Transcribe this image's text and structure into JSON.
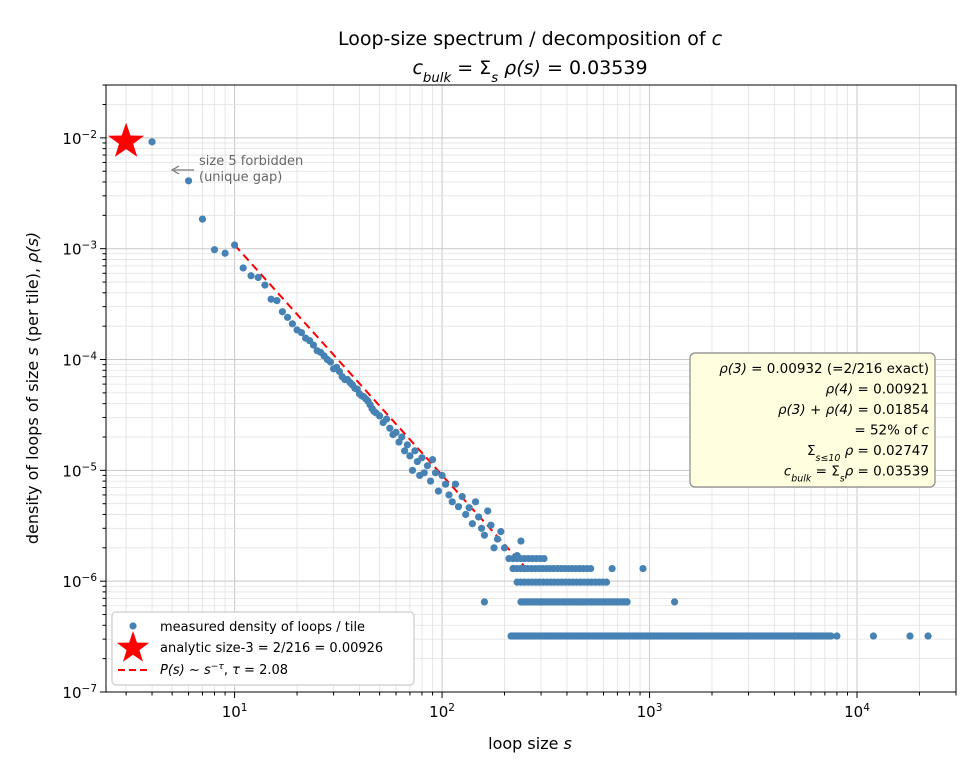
{
  "chart_data": {
    "type": "scatter",
    "title": "Loop-size spectrum / decomposition of c",
    "subtitle": "c_bulk = Σ_s ρ(s) = 0.03539",
    "xlabel": "loop size  s",
    "ylabel": "density of loops of size s  (per tile),  ρ(s)",
    "xscale": "log",
    "yscale": "log",
    "xlim": [
      2.4,
      30000
    ],
    "ylim": [
      1e-07,
      0.03
    ],
    "x_ticks": [
      "10^1",
      "10^2",
      "10^3",
      "10^4"
    ],
    "y_ticks": [
      "10^-7",
      "10^-6",
      "10^-5",
      "10^-4",
      "10^-3",
      "10^-2"
    ],
    "grid": true,
    "legend_position": "lower-left",
    "legend": [
      "measured density of loops / tile",
      "analytic size-3 = 2/216 = 0.00926",
      "P(s) ~ s^-τ, τ = 2.08"
    ],
    "annotation": {
      "text_line1": "size 5 forbidden",
      "text_line2": "(unique gap)",
      "x": 5,
      "y": 0.005
    },
    "info_box": [
      "ρ(3) = 0.00932 (=2/216 exact)",
      "ρ(4) = 0.00921",
      "ρ(3) + ρ(4) = 0.01854",
      "= 52% of c",
      "Σ_{s≤10} ρ = 0.02747",
      "c_bulk = Σ_s ρ = 0.03539"
    ],
    "analytic_point": {
      "x": 3,
      "y": 0.00926,
      "color": "#ff0000",
      "marker": "star"
    },
    "fit_line": {
      "tau": 2.08,
      "x": [
        10,
        250
      ],
      "y": [
        0.00108,
        1.35e-06
      ],
      "color": "#ff0000",
      "style": "dashed"
    },
    "series": [
      {
        "color": "#4682b4",
        "points": [
          [
            4,
            0.00921
          ],
          [
            6,
            0.0041
          ],
          [
            7,
            0.00185
          ],
          [
            8,
            0.00098
          ],
          [
            9,
            0.00091
          ],
          [
            10,
            0.00108
          ],
          [
            11,
            0.00067
          ],
          [
            12,
            0.00057
          ],
          [
            13,
            0.00055
          ],
          [
            14,
            0.00047
          ],
          [
            15,
            0.00035
          ],
          [
            16,
            0.00034
          ],
          [
            17,
            0.00027
          ],
          [
            18,
            0.00024
          ],
          [
            19,
            0.00021
          ],
          [
            20,
            0.000185
          ],
          [
            21,
            0.000175
          ],
          [
            22,
            0.000156
          ],
          [
            23,
            0.000148
          ],
          [
            24,
            0.000135
          ],
          [
            25,
            0.00012
          ],
          [
            26,
            0.000116
          ],
          [
            27,
            0.000108
          ],
          [
            28,
            0.0001
          ],
          [
            29,
            9.5e-05
          ],
          [
            30,
            8.25e-05
          ],
          [
            31,
            8.5e-05
          ],
          [
            32,
            7.8e-05
          ],
          [
            33,
            7e-05
          ],
          [
            34,
            6.6e-05
          ],
          [
            35,
            6.6e-05
          ],
          [
            36,
            6.2e-05
          ],
          [
            37,
            5.9e-05
          ],
          [
            38,
            5.5e-05
          ],
          [
            39,
            5.4e-05
          ],
          [
            40,
            4.9e-05
          ],
          [
            41,
            4.7e-05
          ],
          [
            42,
            4.6e-05
          ],
          [
            43,
            4.4e-05
          ],
          [
            44,
            4.2e-05
          ],
          [
            45,
            3.9e-05
          ],
          [
            46,
            3.6e-05
          ],
          [
            47,
            3.4e-05
          ],
          [
            48,
            3.3e-05
          ],
          [
            50,
            3.1e-05
          ],
          [
            52,
            2.7e-05
          ],
          [
            54,
            2.9e-05
          ],
          [
            56,
            2.4e-05
          ],
          [
            58,
            2.1e-05
          ],
          [
            60,
            2.2e-05
          ],
          [
            62,
            1.8e-05
          ],
          [
            64,
            2e-05
          ],
          [
            66,
            1.5e-05
          ],
          [
            68,
            1.7e-05
          ],
          [
            70,
            1.35e-05
          ],
          [
            72,
            1e-05
          ],
          [
            74,
            1.5e-05
          ],
          [
            76,
            1.2e-05
          ],
          [
            78,
            9e-06
          ],
          [
            80,
            1.3e-05
          ],
          [
            82,
            9.5e-06
          ],
          [
            85,
            1.1e-05
          ],
          [
            88,
            8e-06
          ],
          [
            90,
            1.25e-05
          ],
          [
            93,
            9.5e-06
          ],
          [
            96,
            6.5e-06
          ],
          [
            100,
            9e-06
          ],
          [
            104,
            7.5e-06
          ],
          [
            108,
            6e-06
          ],
          [
            112,
            5.2e-06
          ],
          [
            116,
            7.5e-06
          ],
          [
            120,
            4.7e-06
          ],
          [
            125,
            5.8e-06
          ],
          [
            130,
            4e-06
          ],
          [
            135,
            4.6e-06
          ],
          [
            140,
            3.3e-06
          ],
          [
            145,
            5.2e-06
          ],
          [
            150,
            3.8e-06
          ],
          [
            155,
            3e-06
          ],
          [
            160,
            2.6e-06
          ],
          [
            166,
            4.3e-06
          ],
          [
            172,
            3.2e-06
          ],
          [
            178,
            2e-06
          ],
          [
            185,
            2.4e-06
          ],
          [
            192,
            2.8e-06
          ],
          [
            200,
            2e-06
          ],
          [
            210,
            1.6e-06
          ],
          [
            220,
            1.3e-06
          ],
          [
            230,
            1.7e-06
          ],
          [
            240,
            2.3e-06
          ],
          [
            160,
            6.5e-07
          ],
          [
            250,
            1.3e-06
          ],
          [
            300,
            6.5e-07
          ],
          [
            660,
            1.3e-06
          ],
          [
            930,
            1.3e-06
          ],
          [
            1320,
            6.5e-07
          ],
          [
            1800,
            3.2e-07
          ],
          [
            3000,
            3.2e-07
          ],
          [
            5000,
            3.2e-07
          ],
          [
            8000,
            3.2e-07
          ],
          [
            12000,
            3.2e-07
          ],
          [
            18000,
            3.2e-07
          ],
          [
            22000,
            3.2e-07
          ]
        ]
      }
    ]
  }
}
